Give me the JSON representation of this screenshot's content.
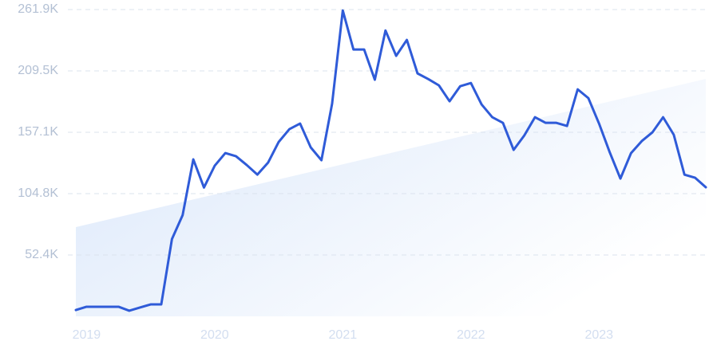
{
  "chart_data": {
    "type": "line",
    "categories": [
      null,
      "2019",
      null,
      null,
      null,
      null,
      null,
      null,
      null,
      null,
      null,
      null,
      null,
      "2020",
      null,
      null,
      null,
      null,
      null,
      null,
      null,
      null,
      null,
      null,
      null,
      "2021",
      null,
      null,
      null,
      null,
      null,
      null,
      null,
      null,
      null,
      null,
      null,
      "2022",
      null,
      null,
      null,
      null,
      null,
      null,
      null,
      null,
      null,
      null,
      null,
      "2023",
      null,
      null,
      null,
      null,
      null,
      null,
      null,
      null,
      null,
      null
    ],
    "series": [
      {
        "color": "#2f5bd8",
        "values": [
          5400,
          8200,
          8200,
          8200,
          8200,
          4800,
          7500,
          10200,
          10200,
          66000,
          86400,
          134000,
          110000,
          128500,
          139400,
          136700,
          129200,
          121000,
          131200,
          148900,
          159800,
          164600,
          144200,
          133300,
          181600,
          261100,
          227800,
          227800,
          202000,
          244000,
          222400,
          236000,
          207400,
          202600,
          197200,
          183600,
          196500,
          199200,
          180900,
          170000,
          165200,
          142100,
          154400,
          170000,
          165200,
          165200,
          162500,
          193800,
          186300,
          164600,
          140100,
          117600,
          139400,
          149600,
          157100,
          170000,
          155000,
          121000,
          118300,
          110200
        ]
      }
    ],
    "trend": {
      "color": "#d8e6fa",
      "values": [
        76200,
        202700
      ]
    },
    "ylim": [
      0,
      261900
    ],
    "yticks": [
      {
        "value": 52380,
        "label": "52.4K"
      },
      {
        "value": 104760,
        "label": "104.8K"
      },
      {
        "value": 157140,
        "label": "157.1K"
      },
      {
        "value": 209520,
        "label": "209.5K"
      },
      {
        "value": 261900,
        "label": "261.9K"
      }
    ],
    "grid": true
  }
}
